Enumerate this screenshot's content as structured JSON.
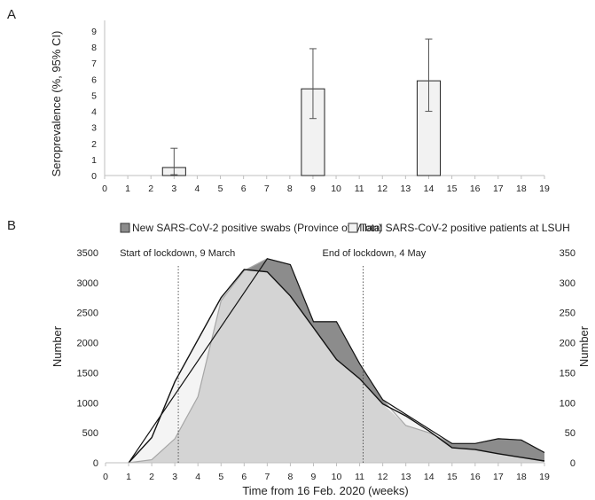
{
  "chart_data": [
    {
      "panel_label": "A",
      "type": "bar",
      "ylabel": "Seroprevalence (%, 95% CI)",
      "xlim": [
        0,
        19
      ],
      "ylim": [
        0,
        9
      ],
      "x_ticks": [
        "0",
        "1",
        "2",
        "3",
        "4",
        "5",
        "6",
        "7",
        "8",
        "9",
        "10",
        "11",
        "12",
        "13",
        "14",
        "15",
        "16",
        "17",
        "18",
        "19"
      ],
      "y_ticks": [
        "0",
        "1",
        "2",
        "3",
        "4",
        "5",
        "6",
        "7",
        "8",
        "9"
      ],
      "bars": [
        {
          "x": 3,
          "value": 0.5,
          "ci_low": 0.05,
          "ci_high": 1.7
        },
        {
          "x": 9,
          "value": 5.4,
          "ci_low": 3.55,
          "ci_high": 7.9
        },
        {
          "x": 14,
          "value": 5.9,
          "ci_low": 4.0,
          "ci_high": 8.5
        }
      ]
    },
    {
      "panel_label": "B",
      "type": "area",
      "xlabel": "Time from 16 Feb. 2020 (weeks)",
      "ylabel_left": "Number",
      "ylabel_right": "Number",
      "xlim": [
        0,
        19
      ],
      "ylim_left": [
        0,
        3500
      ],
      "ylim_right": [
        0,
        350
      ],
      "x_ticks": [
        "0",
        "1",
        "2",
        "3",
        "4",
        "5",
        "6",
        "7",
        "8",
        "9",
        "10",
        "11",
        "12",
        "13",
        "14",
        "15",
        "16",
        "17",
        "18",
        "19"
      ],
      "y_ticks_left": [
        "0",
        "500",
        "1000",
        "1500",
        "2000",
        "2500",
        "3000",
        "3500"
      ],
      "y_ticks_right": [
        "0",
        "50",
        "100",
        "150",
        "200",
        "250",
        "300",
        "350"
      ],
      "legend": [
        {
          "label": "New SARS-CoV-2 positive swabs (Province of Milan)",
          "color": "#8c8c8c"
        },
        {
          "label": "Total SARS-CoV-2 positive patients at LSUH",
          "color": "#f2f2f2"
        }
      ],
      "series": [
        {
          "name": "New SARS-CoV-2 positive swabs (Province of Milan)",
          "axis": "left",
          "color": "#a6a6a6",
          "x": [
            1,
            2,
            3,
            4,
            5,
            6,
            7,
            8,
            9,
            10,
            11,
            12,
            13,
            14,
            15,
            16,
            17,
            18,
            19
          ],
          "values": [
            0,
            50,
            400,
            1100,
            2700,
            3200,
            3400,
            3300,
            2350,
            2350,
            1650,
            1050,
            620,
            500,
            320,
            320,
            400,
            380,
            170
          ]
        },
        {
          "name": "Total SARS-CoV-2 positive patients at LSUH",
          "axis": "right",
          "color": "#f4f4f4",
          "x": [
            1,
            2,
            3,
            4,
            5,
            6,
            7,
            8,
            9,
            10,
            11,
            12,
            13,
            14,
            15,
            16,
            17,
            18,
            19
          ],
          "values": [
            0,
            42,
            135,
            205,
            275,
            322,
            318,
            278,
            225,
            172,
            140,
            98,
            78,
            53,
            25,
            22,
            15,
            9,
            3
          ]
        }
      ],
      "annotations": [
        {
          "text": "Start of lockdown, 9 March",
          "x": 3.15
        },
        {
          "text": "End of lockdown, 4 May",
          "x": 11.15
        }
      ]
    }
  ],
  "colors": {
    "axis": "#bfbfbf",
    "bar_fill": "#f2f2f2",
    "bar_edge": "#222222",
    "dark_area": "#8c8c8c",
    "mid_area": "#d4d4d4",
    "light_area": "#f4f4f4",
    "error_bar": "#555555"
  }
}
